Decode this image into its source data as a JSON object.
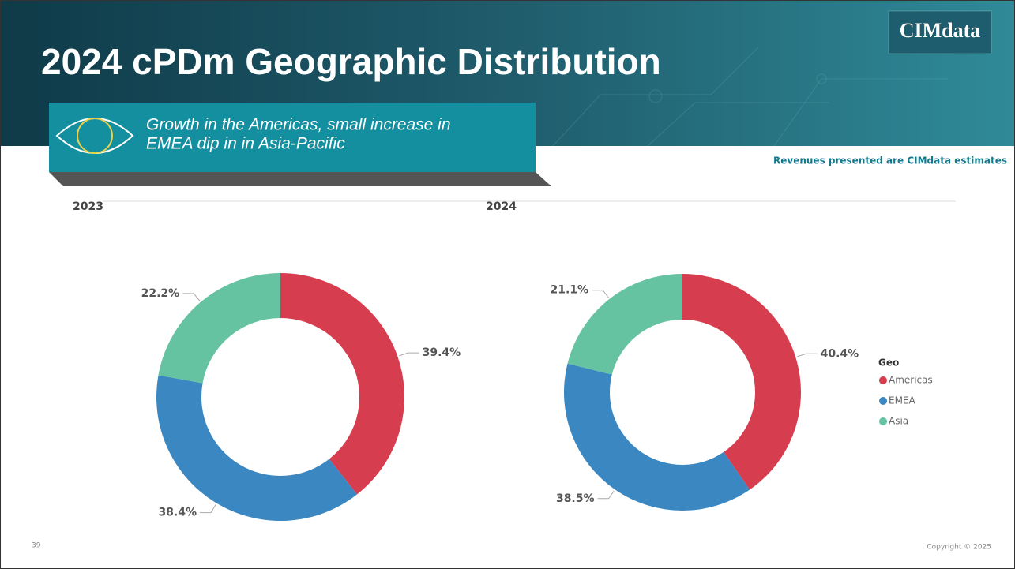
{
  "header": {
    "title": "2024 cPDm Geographic Distribution",
    "logo": "CIMdata",
    "callout": [
      "Growth in the Americas, small increase in",
      "EMEA dip in in Asia-Pacific"
    ],
    "note": "Revenues presented are CIMdata estimates"
  },
  "chart_data": [
    {
      "type": "pie",
      "title": "2023",
      "categories": [
        "Americas",
        "EMEA",
        "Asia"
      ],
      "values": [
        39.4,
        38.4,
        22.2
      ],
      "value_labels": [
        "39.4%",
        "38.4%",
        "22.2%"
      ],
      "colors": [
        "#d63e50",
        "#3a87c1",
        "#66c3a1"
      ],
      "donut": true
    },
    {
      "type": "pie",
      "title": "2024",
      "categories": [
        "Americas",
        "EMEA",
        "Asia"
      ],
      "values": [
        40.4,
        38.5,
        21.1
      ],
      "value_labels": [
        "40.4%",
        "38.5%",
        "21.1%"
      ],
      "colors": [
        "#d63e50",
        "#3a87c1",
        "#66c3a1"
      ],
      "donut": true,
      "legend": {
        "title": "Geo",
        "position": "right"
      }
    }
  ],
  "footer": {
    "page": "39",
    "copyright": "Copyright © 2025"
  }
}
